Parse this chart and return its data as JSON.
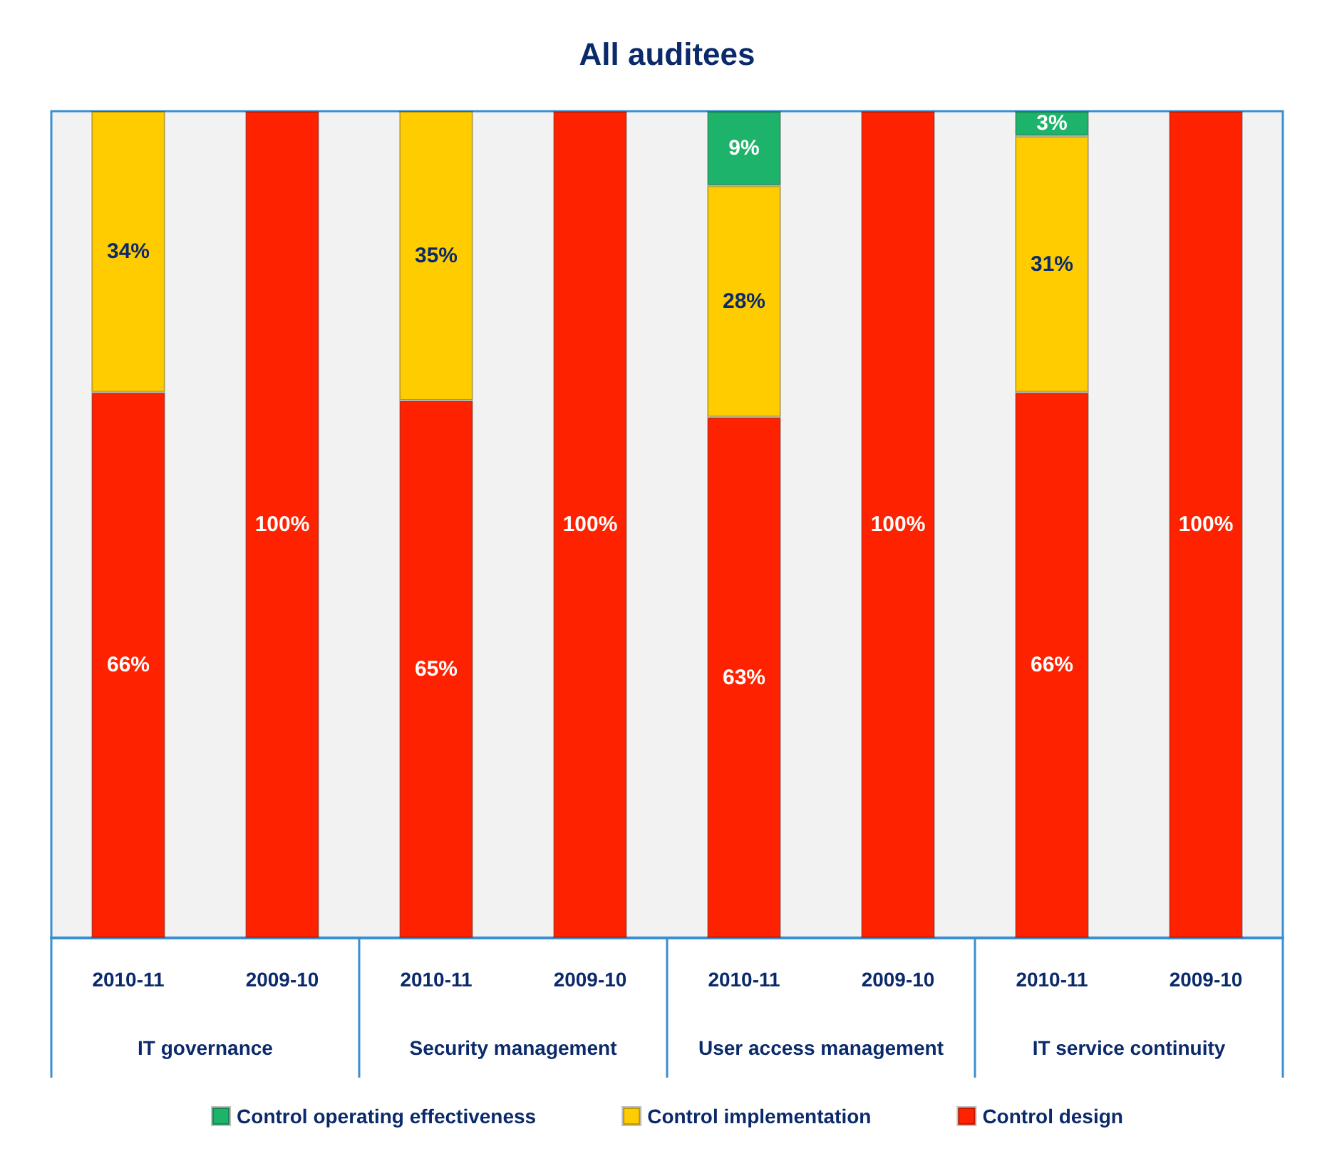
{
  "chart_data": {
    "type": "bar",
    "title": "All auditees",
    "stacked": true,
    "legend": "bottom",
    "grid": false,
    "tick_labels": "x",
    "categories": [
      "2010-11",
      "2009-10",
      "2010-11",
      "2009-10",
      "2010-11",
      "2009-10",
      "2010-11",
      "2009-10"
    ],
    "annotations": [
      "IT governance",
      "Security management",
      "User access management",
      "IT service continuity"
    ],
    "series": [
      {
        "name": "Control design",
        "color": "#ff2200",
        "values": [
          66,
          100,
          65,
          100,
          63,
          100,
          66,
          100
        ],
        "value_labels": [
          "66%",
          "100%",
          "65%",
          "100%",
          "63%",
          "100%",
          "66%",
          "100%"
        ]
      },
      {
        "name": "Control implementation",
        "color": "#ffcc00",
        "values": [
          34,
          null,
          35,
          null,
          28,
          null,
          31,
          null
        ],
        "value_labels": [
          "34%",
          null,
          "35%",
          null,
          "28%",
          null,
          "31%",
          null
        ]
      },
      {
        "name": "Control operating effectiveness",
        "color": "#1db36b",
        "values": [
          null,
          null,
          null,
          null,
          9,
          null,
          3,
          null
        ],
        "value_labels": [
          null,
          null,
          null,
          null,
          "9%",
          null,
          "3%",
          null
        ]
      }
    ]
  }
}
